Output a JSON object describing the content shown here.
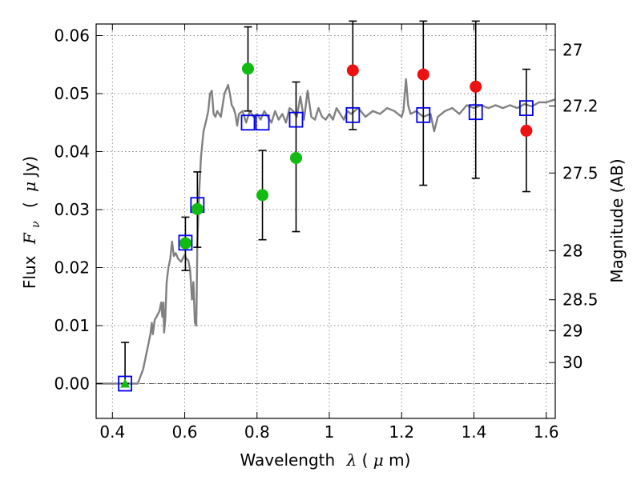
{
  "chart_data": {
    "type": "scatter",
    "xlabel": {
      "pre": "Wavelength",
      "math": "λ",
      "unit_open": " (",
      "unit_math": "μ",
      "unit_rest": "m)"
    },
    "ylabel": {
      "pre": "Flux",
      "math": "F",
      "math_sub": "ν",
      "unit_open": "(",
      "unit_math": "μ",
      "unit_rest": "Jy)"
    },
    "y2label": "Magnitude (AB)",
    "xlim": [
      0.355,
      1.625
    ],
    "ylim": [
      -0.006,
      0.062
    ],
    "x_ticks": [
      0.4,
      0.6,
      0.8,
      1.0,
      1.2,
      1.4,
      1.6
    ],
    "x_tick_labels": [
      "0.4",
      "0.6",
      "0.8",
      "1",
      "1.2",
      "1.4",
      "1.6"
    ],
    "y_ticks": [
      0.0,
      0.01,
      0.02,
      0.03,
      0.04,
      0.05,
      0.06
    ],
    "y_tick_labels": [
      "0.00",
      "0.01",
      "0.02",
      "0.03",
      "0.04",
      "0.05",
      "0.06"
    ],
    "mag_ticks": [
      {
        "mag": 27,
        "label": "27"
      },
      {
        "mag": 27.2,
        "label": "27.2"
      },
      {
        "mag": 27.5,
        "label": "27.5"
      },
      {
        "mag": 28,
        "label": "28"
      },
      {
        "mag": 28.5,
        "label": "28.5"
      },
      {
        "mag": 29,
        "label": "29"
      },
      {
        "mag": 30,
        "label": "30"
      }
    ],
    "grid": true,
    "zero_line": true,
    "colors": {
      "model": "#808080",
      "synthetic": "#0000ee",
      "optical": "#11bb11",
      "infrared": "#ee1111",
      "grid": "#888888"
    },
    "model_spectrum": [
      [
        0.355,
        0.0
      ],
      [
        0.47,
        0.0
      ],
      [
        0.485,
        0.0025
      ],
      [
        0.495,
        0.0055
      ],
      [
        0.505,
        0.0085
      ],
      [
        0.509,
        0.0105
      ],
      [
        0.512,
        0.0085
      ],
      [
        0.517,
        0.011
      ],
      [
        0.522,
        0.0115
      ],
      [
        0.53,
        0.0125
      ],
      [
        0.535,
        0.014
      ],
      [
        0.538,
        0.0115
      ],
      [
        0.541,
        0.014
      ],
      [
        0.543,
        0.0088
      ],
      [
        0.546,
        0.011
      ],
      [
        0.55,
        0.0175
      ],
      [
        0.555,
        0.02
      ],
      [
        0.56,
        0.0215
      ],
      [
        0.565,
        0.0245
      ],
      [
        0.57,
        0.022
      ],
      [
        0.575,
        0.0225
      ],
      [
        0.582,
        0.0215
      ],
      [
        0.59,
        0.021
      ],
      [
        0.6,
        0.0222
      ],
      [
        0.605,
        0.0215
      ],
      [
        0.61,
        0.0212
      ],
      [
        0.615,
        0.0195
      ],
      [
        0.62,
        0.0145
      ],
      [
        0.624,
        0.0175
      ],
      [
        0.628,
        0.0105
      ],
      [
        0.632,
        0.01
      ],
      [
        0.635,
        0.024
      ],
      [
        0.64,
        0.033
      ],
      [
        0.645,
        0.039
      ],
      [
        0.652,
        0.0435
      ],
      [
        0.66,
        0.0455
      ],
      [
        0.665,
        0.047
      ],
      [
        0.67,
        0.05
      ],
      [
        0.675,
        0.0505
      ],
      [
        0.68,
        0.0465
      ],
      [
        0.685,
        0.046
      ],
      [
        0.69,
        0.047
      ],
      [
        0.7,
        0.046
      ],
      [
        0.705,
        0.048
      ],
      [
        0.71,
        0.05
      ],
      [
        0.72,
        0.0515
      ],
      [
        0.725,
        0.05
      ],
      [
        0.73,
        0.048
      ],
      [
        0.735,
        0.0475
      ],
      [
        0.74,
        0.0465
      ],
      [
        0.745,
        0.0445
      ],
      [
        0.75,
        0.0465
      ],
      [
        0.76,
        0.047
      ],
      [
        0.77,
        0.045
      ],
      [
        0.78,
        0.047
      ],
      [
        0.79,
        0.046
      ],
      [
        0.8,
        0.0465
      ],
      [
        0.81,
        0.0455
      ],
      [
        0.82,
        0.047
      ],
      [
        0.83,
        0.046
      ],
      [
        0.84,
        0.045
      ],
      [
        0.85,
        0.047
      ],
      [
        0.86,
        0.0455
      ],
      [
        0.87,
        0.0465
      ],
      [
        0.88,
        0.045
      ],
      [
        0.89,
        0.0475
      ],
      [
        0.9,
        0.047
      ],
      [
        0.91,
        0.046
      ],
      [
        0.92,
        0.0495
      ],
      [
        0.93,
        0.0455
      ],
      [
        0.94,
        0.0505
      ],
      [
        0.95,
        0.046
      ],
      [
        0.96,
        0.0455
      ],
      [
        0.97,
        0.0475
      ],
      [
        0.98,
        0.046
      ],
      [
        0.99,
        0.0455
      ],
      [
        1.0,
        0.0465
      ],
      [
        1.01,
        0.0455
      ],
      [
        1.02,
        0.0475
      ],
      [
        1.03,
        0.0465
      ],
      [
        1.04,
        0.0455
      ],
      [
        1.05,
        0.047
      ],
      [
        1.06,
        0.0465
      ],
      [
        1.08,
        0.0475
      ],
      [
        1.1,
        0.046
      ],
      [
        1.12,
        0.047
      ],
      [
        1.14,
        0.0465
      ],
      [
        1.16,
        0.0475
      ],
      [
        1.18,
        0.047
      ],
      [
        1.2,
        0.046
      ],
      [
        1.205,
        0.047
      ],
      [
        1.212,
        0.0525
      ],
      [
        1.218,
        0.048
      ],
      [
        1.225,
        0.0465
      ],
      [
        1.24,
        0.047
      ],
      [
        1.26,
        0.046
      ],
      [
        1.28,
        0.0465
      ],
      [
        1.29,
        0.0435
      ],
      [
        1.3,
        0.046
      ],
      [
        1.32,
        0.047
      ],
      [
        1.34,
        0.0475
      ],
      [
        1.36,
        0.0465
      ],
      [
        1.38,
        0.048
      ],
      [
        1.4,
        0.0475
      ],
      [
        1.42,
        0.048
      ],
      [
        1.44,
        0.0475
      ],
      [
        1.46,
        0.048
      ],
      [
        1.48,
        0.0475
      ],
      [
        1.5,
        0.048
      ],
      [
        1.52,
        0.0475
      ],
      [
        1.54,
        0.0482
      ],
      [
        1.56,
        0.0478
      ],
      [
        1.58,
        0.0485
      ],
      [
        1.6,
        0.0485
      ],
      [
        1.625,
        0.049
      ]
    ],
    "series": [
      {
        "marker": "open-square",
        "x": [
          0.435,
          0.602,
          0.635,
          0.775,
          0.815,
          0.908,
          1.065,
          1.26,
          1.405,
          1.545
        ],
        "y": [
          0.0,
          0.0243,
          0.0308,
          0.045,
          0.045,
          0.0455,
          0.0463,
          0.0463,
          0.0468,
          0.0475
        ]
      },
      {
        "marker": "filled-circle",
        "x": [
          0.602,
          0.635,
          0.775,
          0.815,
          0.908
        ],
        "y": [
          0.0242,
          0.0301,
          0.0543,
          0.0325,
          0.0389
        ],
        "err_low": [
          0.0195,
          0.0235,
          0.047,
          0.0248,
          0.0262
        ],
        "err_high": [
          0.0287,
          0.0365,
          0.0615,
          0.0402,
          0.052
        ]
      },
      {
        "marker": "filled-circle",
        "x": [
          1.065,
          1.26,
          1.405,
          1.545
        ],
        "y": [
          0.054,
          0.0533,
          0.0512,
          0.0436
        ],
        "err_low": [
          0.0438,
          0.0342,
          0.0354,
          0.0331
        ],
        "err_high": [
          0.0625,
          0.0625,
          0.0625,
          0.0542
        ]
      },
      {
        "marker": "filled-triangle",
        "x": [
          0.435
        ],
        "y": [
          0.0
        ],
        "err_low": [
          0.0
        ],
        "err_high": [
          0.0071
        ]
      }
    ]
  }
}
